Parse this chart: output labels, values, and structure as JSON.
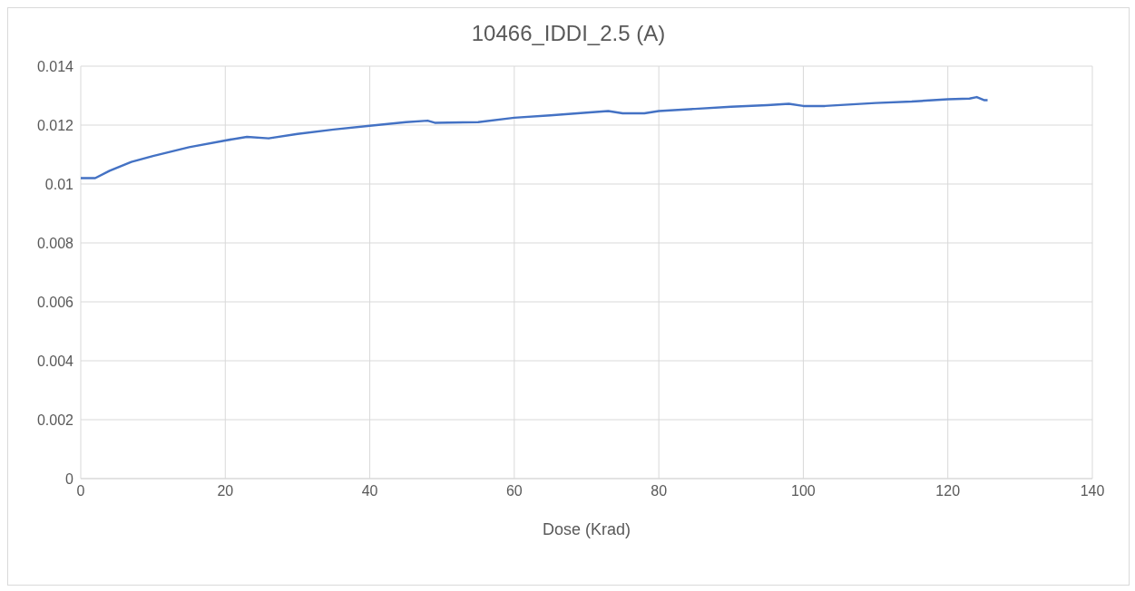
{
  "chart_data": {
    "type": "line",
    "title": "10466_IDDI_2.5 (A)",
    "xlabel": "Dose (Krad)",
    "x": [
      0,
      2,
      4,
      7,
      10,
      15,
      20,
      23,
      26,
      30,
      35,
      40,
      45,
      48,
      49,
      55,
      60,
      65,
      70,
      73,
      75,
      78,
      80,
      85,
      90,
      95,
      98,
      100,
      103,
      110,
      115,
      120,
      123,
      124,
      125,
      125.5
    ],
    "series": [
      {
        "color": "#4472c4",
        "values": [
          0.0102,
          0.0102,
          0.01045,
          0.01075,
          0.01095,
          0.01125,
          0.01148,
          0.0116,
          0.01155,
          0.0117,
          0.01185,
          0.01198,
          0.0121,
          0.01215,
          0.01208,
          0.0121,
          0.01225,
          0.01233,
          0.01242,
          0.01248,
          0.0124,
          0.0124,
          0.01248,
          0.01255,
          0.01262,
          0.01268,
          0.01272,
          0.01265,
          0.01265,
          0.01275,
          0.0128,
          0.01288,
          0.0129,
          0.01295,
          0.01285,
          0.01285
        ]
      }
    ],
    "xlim": [
      0,
      140
    ],
    "xticks": [
      0,
      20,
      40,
      60,
      80,
      100,
      120,
      140
    ],
    "ylim": [
      0,
      0.014
    ],
    "yticks": [
      0,
      0.002,
      0.004,
      0.006,
      0.008,
      0.01,
      0.012,
      0.014
    ],
    "grid": true,
    "marker": "none",
    "line_style": "solid"
  }
}
